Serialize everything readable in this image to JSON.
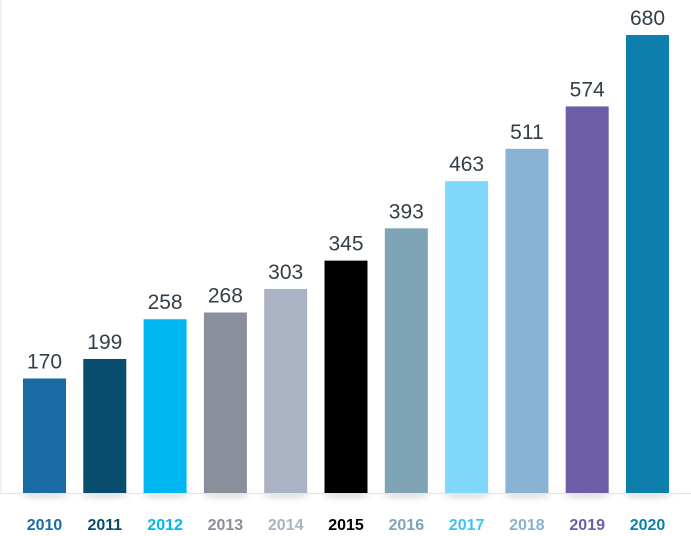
{
  "chart_data": {
    "type": "bar",
    "title": "",
    "xlabel": "",
    "ylabel": "",
    "ylim": [
      0,
      680
    ],
    "grid": false,
    "legend": "none",
    "categories": [
      "2010",
      "2011",
      "2012",
      "2013",
      "2014",
      "2015",
      "2016",
      "2017",
      "2018",
      "2019",
      "2020"
    ],
    "values": [
      170,
      199,
      258,
      268,
      303,
      345,
      393,
      463,
      511,
      574,
      680
    ],
    "value_labels": [
      "170",
      "199",
      "258",
      "268",
      "303",
      "345",
      "393",
      "463",
      "511",
      "574",
      "680"
    ],
    "bar_colors": [
      "#1a6aa6",
      "#084c6e",
      "#00b7f1",
      "#8a8f9c",
      "#aab3c3",
      "#000000",
      "#7fa4b5",
      "#7fd8fa",
      "#89b3d4",
      "#6e5ea8",
      "#0e7fad"
    ],
    "label_colors": [
      "#1a6aa6",
      "#084c6e",
      "#00b7f1",
      "#8a8f9c",
      "#aab3c3",
      "#000000",
      "#7fa4b5",
      "#3cc3f4",
      "#89b3d4",
      "#6e5ea8",
      "#0e7fad"
    ],
    "value_label_color": "#333f48",
    "axis_color": "#e2e4e8"
  }
}
